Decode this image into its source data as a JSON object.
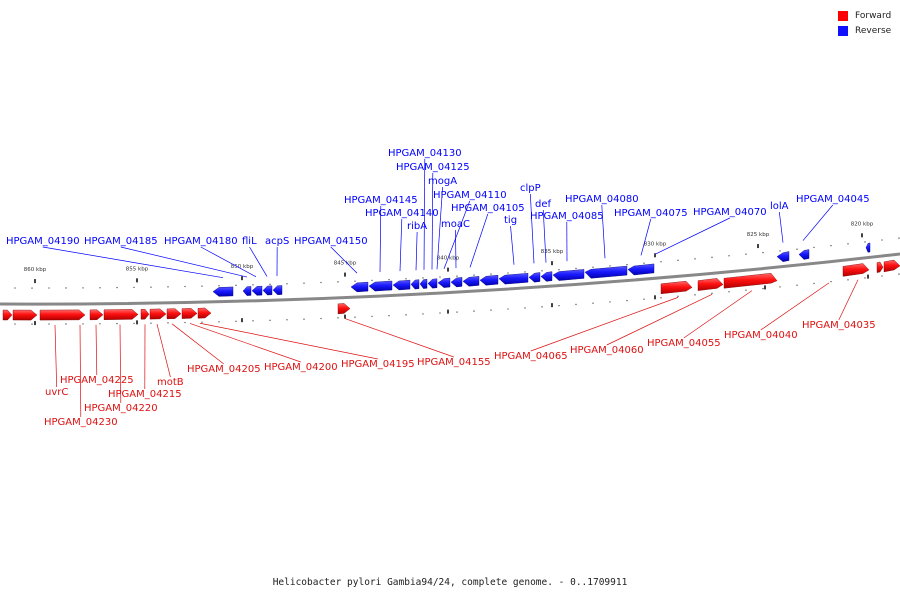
{
  "legend": {
    "forward_label": "Forward",
    "forward_color": "#ff0000",
    "reverse_label": "Reverse",
    "reverse_color": "#1010ff"
  },
  "caption": "Helicobacter pylori Gambia94/24, complete genome. - 0..1709911",
  "scale_ticks": [
    "860 kbp",
    "855 kbp",
    "850 kbp",
    "845 kbp",
    "840 kbp",
    "835 kbp",
    "830 kbp",
    "825 kbp",
    "820 kbp"
  ],
  "reverse_genes": [
    "HPGAM_04190",
    "HPGAM_04185",
    "HPGAM_04180",
    "fliL",
    "acpS",
    "HPGAM_04150",
    "HPGAM_04145",
    "HPGAM_04140",
    "ribA",
    "HPGAM_04130",
    "HPGAM_04125",
    "mogA",
    "moaC",
    "HPGAM_04110",
    "HPGAM_04105",
    "tig",
    "clpP",
    "def",
    "HPGAM_04085",
    "HPGAM_04080",
    "HPGAM_04075",
    "HPGAM_04070",
    "lolA",
    "HPGAM_04045"
  ],
  "forward_genes": [
    "uvrC",
    "HPGAM_04230",
    "HPGAM_04225",
    "HPGAM_04220",
    "HPGAM_04215",
    "motB",
    "HPGAM_04205",
    "HPGAM_04200",
    "HPGAM_04195",
    "HPGAM_04155",
    "HPGAM_04065",
    "HPGAM_04060",
    "HPGAM_04055",
    "HPGAM_04040",
    "HPGAM_04035"
  ]
}
